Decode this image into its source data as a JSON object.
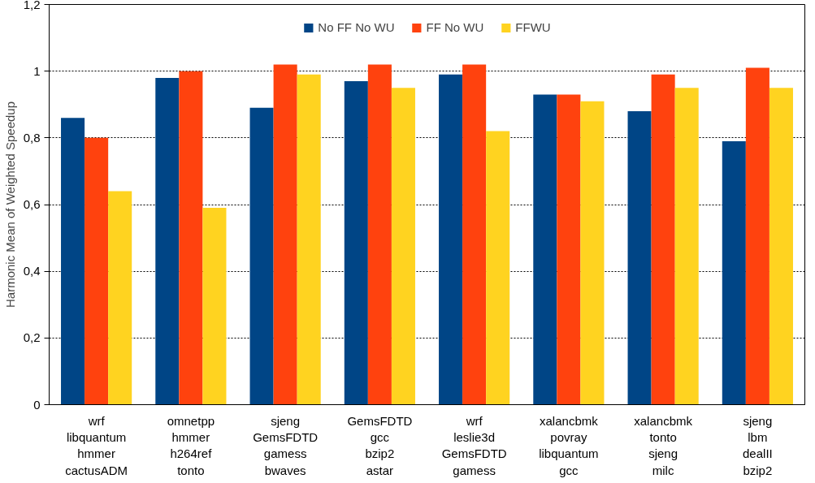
{
  "chart_data": {
    "type": "bar",
    "ylabel": "Harmonic Mean of Weighted Speedup",
    "categories": [
      "wrf\nlibquantum\nhmmer\ncactusADM",
      "omnetpp\nhmmer\nh264ref\ntonto",
      "sjeng\nGemsFDTD\ngamess\nbwaves",
      "GemsFDTD\ngcc\nbzip2\nastar",
      "wrf\nleslie3d\nGemsFDTD\ngamess",
      "xalancbmk\npovray\nlibquantum\ngcc",
      "xalancbmk\ntonto\nsjeng\nmilc",
      "sjeng\nlbm\ndealII\nbzip2"
    ],
    "series": [
      {
        "name": "No FF No WU",
        "color": "#004586",
        "values": [
          0.86,
          0.98,
          0.89,
          0.97,
          0.99,
          0.93,
          0.88,
          0.79
        ]
      },
      {
        "name": "FF No WU",
        "color": "#ff420e",
        "values": [
          0.8,
          1.0,
          1.02,
          1.02,
          1.02,
          0.93,
          0.99,
          1.01
        ]
      },
      {
        "name": "FFWU",
        "color": "#ffd320",
        "values": [
          0.64,
          0.59,
          0.99,
          0.95,
          0.82,
          0.91,
          0.95,
          0.95
        ]
      }
    ],
    "ylim": [
      0,
      1.2
    ],
    "yticks": [
      0,
      {
        "value": 0.2,
        "label": "0,2"
      },
      {
        "value": 0.4,
        "label": "0,4"
      },
      {
        "value": 0.6,
        "label": "0,6"
      },
      {
        "value": 0.8,
        "label": "0,8"
      },
      1,
      {
        "value": 1.2,
        "label": "1,2"
      }
    ],
    "grid": "y",
    "legend": "top"
  }
}
